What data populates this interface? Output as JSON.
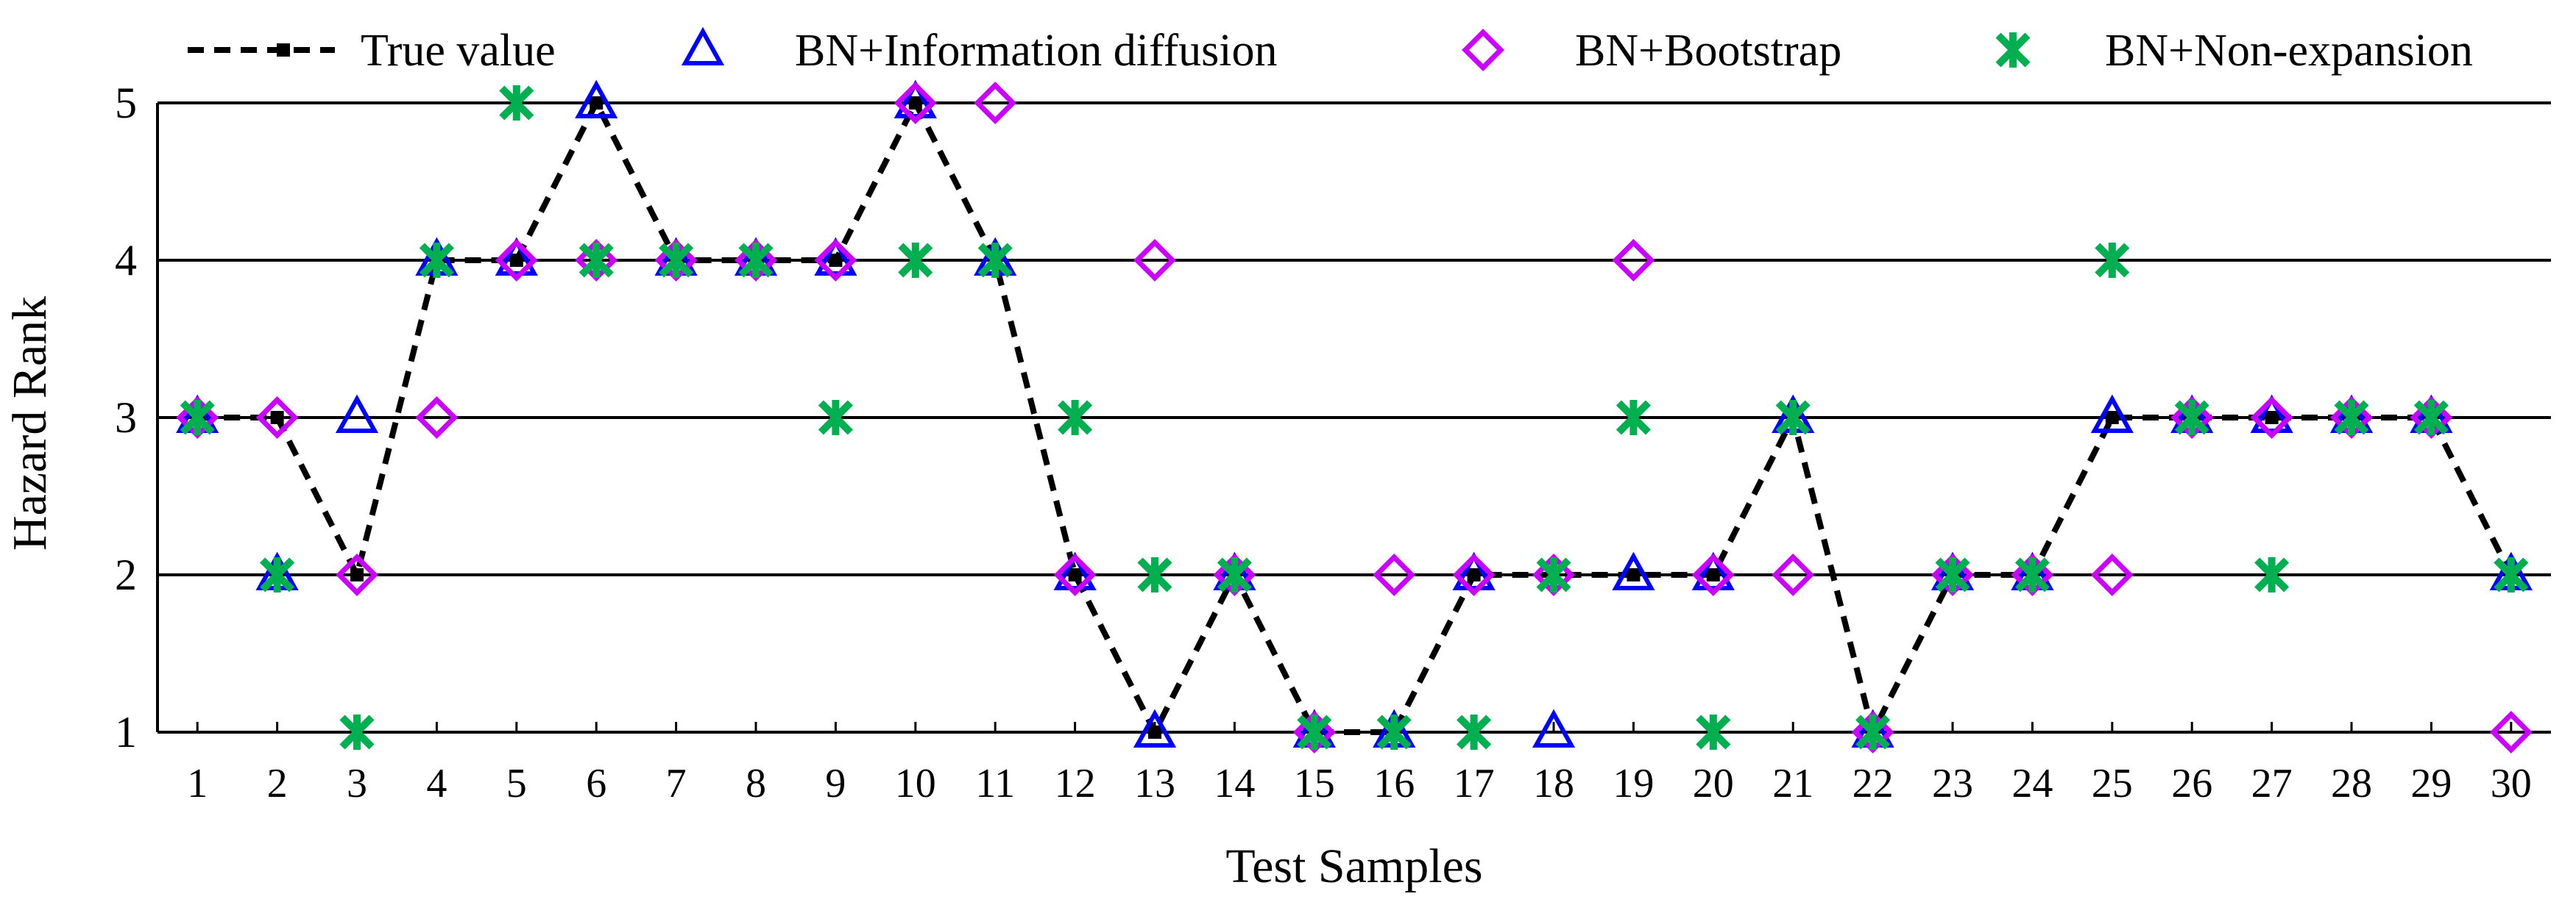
{
  "chart_data": {
    "type": "line",
    "title": "",
    "xlabel": "Test Samples",
    "ylabel": "Hazard Rank",
    "x": [
      1,
      2,
      3,
      4,
      5,
      6,
      7,
      8,
      9,
      10,
      11,
      12,
      13,
      14,
      15,
      16,
      17,
      18,
      19,
      20,
      21,
      22,
      23,
      24,
      25,
      26,
      27,
      28,
      29,
      30
    ],
    "xlim": [
      0.5,
      30.5
    ],
    "ylim": [
      1,
      5
    ],
    "yticks": [
      1,
      2,
      3,
      4,
      5
    ],
    "grid": "horizontal",
    "legend_position": "top",
    "series": [
      {
        "name": "True value",
        "style": "dashed-line-square",
        "color": "#000000",
        "values": [
          3,
          3,
          2,
          4,
          4,
          5,
          4,
          4,
          4,
          5,
          4,
          2,
          1,
          2,
          1,
          1,
          2,
          2,
          2,
          2,
          3,
          1,
          2,
          2,
          3,
          3,
          3,
          3,
          3,
          2
        ]
      },
      {
        "name": "BN+Information diffusion",
        "style": "triangle",
        "color": "#0000ff",
        "values": [
          3,
          2,
          3,
          4,
          4,
          5,
          4,
          4,
          4,
          5,
          4,
          2,
          1,
          2,
          1,
          1,
          2,
          1,
          2,
          2,
          3,
          1,
          2,
          2,
          3,
          3,
          3,
          3,
          3,
          2
        ]
      },
      {
        "name": "BN+Bootstrap",
        "style": "diamond",
        "color": "#cc00ff",
        "values": [
          3,
          3,
          2,
          3,
          4,
          4,
          4,
          4,
          4,
          5,
          5,
          2,
          4,
          2,
          1,
          2,
          2,
          2,
          4,
          2,
          2,
          1,
          2,
          2,
          2,
          3,
          3,
          3,
          3,
          1
        ]
      },
      {
        "name": "BN+Non-expansion",
        "style": "asterisk",
        "color": "#00b050",
        "values": [
          3,
          2,
          1,
          4,
          5,
          4,
          4,
          4,
          3,
          4,
          4,
          3,
          2,
          2,
          1,
          1,
          1,
          2,
          3,
          1,
          3,
          1,
          2,
          2,
          4,
          3,
          2,
          3,
          3,
          2
        ]
      }
    ]
  }
}
